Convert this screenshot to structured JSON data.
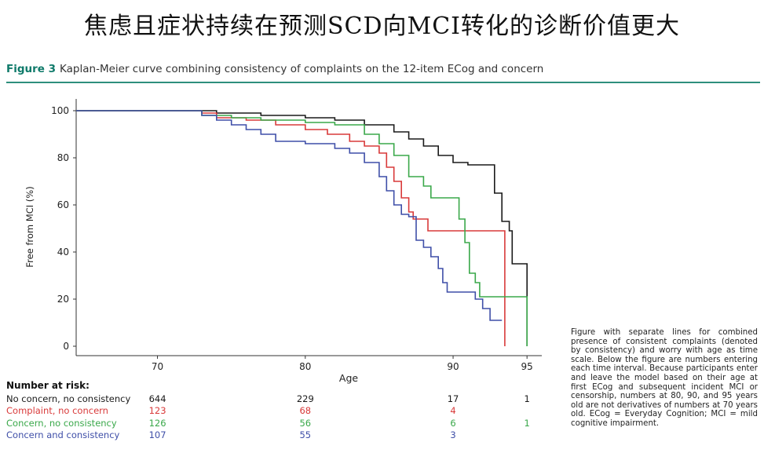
{
  "slide": {
    "title": "焦虑且症状持续在预测SCD向MCI转化的诊断价值更大"
  },
  "figure": {
    "label": "Figure 3",
    "title": "Kaplan-Meier curve combining consistency of complaints on the 12-item ECog and concern",
    "caption": "Figure with separate lines for combined presence of consistent complaints (denoted by consistency) and worry with age as time scale. Below the figure are numbers entering each time interval. Because participants enter and leave the model based on their age at first ECog and subsequent incident MCI or censorship, numbers at 80, 90, and 95 years old are not derivatives of numbers at 70 years old. ECog = Everyday Cognition; MCI = mild cognitive impairment."
  },
  "colors": {
    "accent": "#0f7a6a",
    "rule": "#2e8f7d",
    "no_concern_no_consistency": "#1a1a1a",
    "complaint_no_concern": "#d93a3a",
    "concern_no_consistency": "#3aa84a",
    "concern_and_consistency": "#3f4fa8"
  },
  "chart_data": {
    "type": "line",
    "title": "",
    "xlabel": "Age",
    "ylabel": "Free from MCI (%)",
    "xlim": [
      64.5,
      96
    ],
    "ylim": [
      -2,
      102
    ],
    "xticks": [
      70,
      80,
      90,
      95
    ],
    "yticks": [
      0,
      20,
      40,
      60,
      80,
      100
    ],
    "step": true,
    "grid": false,
    "series": [
      {
        "name": "No concern, no consistency",
        "color": "#1a1a1a",
        "points": [
          [
            64.5,
            100
          ],
          [
            72,
            100
          ],
          [
            74,
            99
          ],
          [
            77,
            98
          ],
          [
            80,
            97
          ],
          [
            82,
            96
          ],
          [
            84,
            94
          ],
          [
            86,
            91
          ],
          [
            87,
            88
          ],
          [
            88,
            85
          ],
          [
            89,
            81
          ],
          [
            90,
            78
          ],
          [
            91,
            77
          ],
          [
            92.8,
            65
          ],
          [
            93.3,
            53
          ],
          [
            93.8,
            49
          ],
          [
            94,
            35
          ],
          [
            95,
            35
          ],
          [
            95,
            0
          ]
        ]
      },
      {
        "name": "Complaint, no concern",
        "color": "#d93a3a",
        "points": [
          [
            64.5,
            100
          ],
          [
            72,
            100
          ],
          [
            73,
            99
          ],
          [
            74,
            97
          ],
          [
            76,
            96
          ],
          [
            78,
            94
          ],
          [
            80,
            92
          ],
          [
            81.5,
            90
          ],
          [
            83,
            87
          ],
          [
            84,
            85
          ],
          [
            85,
            82
          ],
          [
            85.5,
            76
          ],
          [
            86,
            70
          ],
          [
            86.5,
            63
          ],
          [
            87,
            57
          ],
          [
            87.3,
            54
          ],
          [
            88,
            54
          ],
          [
            88.3,
            49
          ],
          [
            93.5,
            49
          ],
          [
            93.5,
            0
          ]
        ]
      },
      {
        "name": "Concern, no consistency",
        "color": "#3aa84a",
        "points": [
          [
            64.5,
            100
          ],
          [
            72,
            100
          ],
          [
            73,
            98
          ],
          [
            75,
            97
          ],
          [
            77,
            96
          ],
          [
            80,
            95
          ],
          [
            82,
            94
          ],
          [
            84,
            90
          ],
          [
            85,
            86
          ],
          [
            86,
            81
          ],
          [
            87,
            72
          ],
          [
            88,
            68
          ],
          [
            88.5,
            63
          ],
          [
            90,
            63
          ],
          [
            90.4,
            54
          ],
          [
            90.8,
            44
          ],
          [
            91.1,
            31
          ],
          [
            91.5,
            27
          ],
          [
            91.8,
            21
          ],
          [
            94,
            21
          ],
          [
            95,
            21
          ],
          [
            95,
            0
          ]
        ]
      },
      {
        "name": "Concern and consistency",
        "color": "#3f4fa8",
        "points": [
          [
            64.5,
            100
          ],
          [
            72,
            100
          ],
          [
            73,
            98
          ],
          [
            74,
            96
          ],
          [
            75,
            94
          ],
          [
            76,
            92
          ],
          [
            77,
            90
          ],
          [
            78,
            87
          ],
          [
            80,
            86
          ],
          [
            82,
            84
          ],
          [
            83,
            82
          ],
          [
            84,
            78
          ],
          [
            85,
            72
          ],
          [
            85.5,
            66
          ],
          [
            86,
            60
          ],
          [
            86.5,
            56
          ],
          [
            87,
            55
          ],
          [
            87.5,
            45
          ],
          [
            88,
            42
          ],
          [
            88.5,
            38
          ],
          [
            89,
            33
          ],
          [
            89.3,
            27
          ],
          [
            89.6,
            23
          ],
          [
            91,
            23
          ],
          [
            91.5,
            20
          ],
          [
            92,
            16
          ],
          [
            92.5,
            11
          ],
          [
            93.3,
            11
          ]
        ]
      }
    ],
    "risk_table": {
      "title": "Number at risk:",
      "columns": [
        70,
        80,
        90,
        95
      ],
      "rows": [
        {
          "label": "No concern, no consistency",
          "color": "#1a1a1a",
          "values": [
            "644",
            "229",
            "17",
            "1"
          ]
        },
        {
          "label": "Complaint, no concern",
          "color": "#d93a3a",
          "values": [
            "123",
            "68",
            "4",
            ""
          ]
        },
        {
          "label": "Concern, no consistency",
          "color": "#3aa84a",
          "values": [
            "126",
            "56",
            "6",
            "1"
          ]
        },
        {
          "label": "Concern and consistency",
          "color": "#3f4fa8",
          "values": [
            "107",
            "55",
            "3",
            ""
          ]
        }
      ]
    }
  }
}
